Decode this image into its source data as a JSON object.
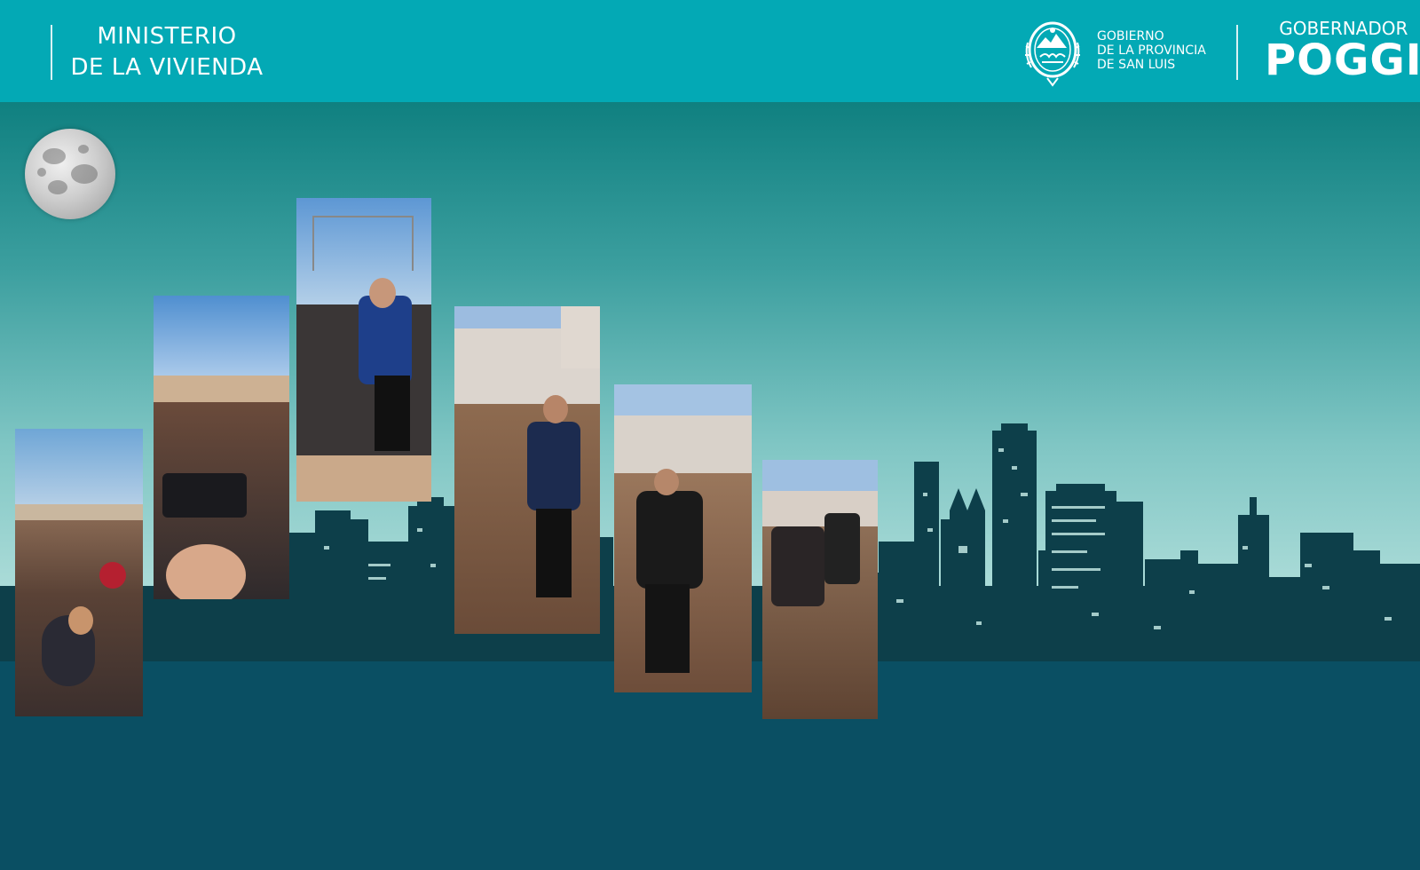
{
  "header": {
    "ministry_line1": "MINISTERIO",
    "ministry_line2": "DE LA VIVIENDA",
    "gov_line1": "GOBIERNO",
    "gov_line2": "DE LA PROVINCIA",
    "gov_line3": "DE SAN LUIS",
    "brand_line1": "GOBERNADOR",
    "brand_line2": "POGGI"
  },
  "colors": {
    "header_bg": "#03a9b5",
    "skyline": "#0d3f4a",
    "ground": "#0a4f63"
  },
  "icons": {
    "seal": "provincial-coat-of-arms",
    "moon": "full-moon-illustration"
  },
  "gallery": {
    "photos": [
      "crowd-at-housing-event",
      "press-camera-crowd",
      "speaker-with-microphone",
      "man-walking-near-houses",
      "man-walking-construction-site",
      "group-walking-neighborhood"
    ]
  }
}
